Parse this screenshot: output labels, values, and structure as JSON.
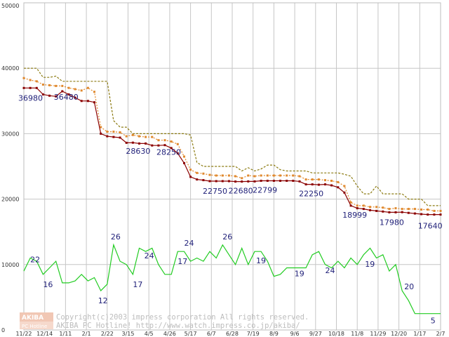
{
  "chart_data": {
    "type": "line",
    "x_ticks": [
      "11/22",
      "12/14",
      "1/11",
      "2/1",
      "2/22",
      "3/15",
      "4/5",
      "4/26",
      "5/17",
      "6/7",
      "6/28",
      "7/19",
      "8/9",
      "9/6",
      "9/27",
      "10/18",
      "11/8",
      "11/29",
      "12/20",
      "1/17",
      "2/7"
    ],
    "ylim": [
      0,
      50000
    ],
    "y_ticks": [
      0,
      10000,
      20000,
      30000,
      40000,
      50000
    ],
    "grid": true,
    "series": [
      {
        "color": "#8b7a10",
        "style": "dashed",
        "values": [
          40000,
          40000,
          40000,
          38600,
          38600,
          38800,
          38000,
          38000,
          38000,
          38000,
          38000,
          38000,
          38000,
          38000,
          32000,
          31000,
          31000,
          30000,
          30000,
          30000,
          30000,
          30000,
          30000,
          30000,
          30000,
          30000,
          29800,
          25600,
          25000,
          25000,
          25000,
          25000,
          25000,
          25000,
          24300,
          24800,
          24300,
          24600,
          25200,
          25200,
          24500,
          24300,
          24300,
          24300,
          24300,
          24000,
          24000,
          24000,
          24000,
          24000,
          23800,
          23500,
          22000,
          20800,
          20800,
          22000,
          20800,
          20800,
          20800,
          20800,
          20000,
          20000,
          20000,
          19000,
          19000,
          19000
        ]
      },
      {
        "color": "#e0892e",
        "style": "dotted-markers",
        "values": [
          38500,
          38200,
          38000,
          37500,
          37400,
          37300,
          37300,
          37000,
          36800,
          36600,
          37000,
          36400,
          31000,
          30300,
          30300,
          30200,
          29600,
          29800,
          29600,
          29500,
          29500,
          29000,
          29000,
          28800,
          28400,
          26500,
          24500,
          24000,
          23900,
          23700,
          23600,
          23600,
          23600,
          23500,
          23200,
          23600,
          23500,
          23600,
          23600,
          23600,
          23600,
          23600,
          23600,
          23500,
          23000,
          23000,
          23000,
          22900,
          22800,
          22600,
          22000,
          19500,
          19000,
          19000,
          18800,
          18800,
          18700,
          18500,
          18600,
          18500,
          18500,
          18500,
          18400,
          18400,
          18200,
          18200
        ]
      },
      {
        "color": "#8b0000",
        "style": "solid-markers",
        "values": [
          36980,
          36980,
          36980,
          36000,
          35800,
          35700,
          36480,
          36000,
          35500,
          35000,
          35000,
          34800,
          30000,
          29600,
          29500,
          29400,
          28600,
          28630,
          28500,
          28500,
          28200,
          28200,
          28250,
          27800,
          27000,
          25500,
          23400,
          23000,
          22900,
          22750,
          22750,
          22750,
          22750,
          22680,
          22680,
          22700,
          22700,
          22799,
          22799,
          22799,
          22799,
          22799,
          22799,
          22700,
          22250,
          22250,
          22200,
          22250,
          22100,
          21800,
          21000,
          18999,
          18600,
          18500,
          18300,
          18200,
          18100,
          17980,
          17980,
          18000,
          17900,
          17800,
          17700,
          17640,
          17640,
          17640
        ]
      },
      {
        "color": "#22cc22",
        "style": "solid",
        "values": [
          9000,
          11000,
          10500,
          8500,
          9500,
          10500,
          7200,
          7200,
          7500,
          8500,
          7500,
          8000,
          6000,
          7000,
          13000,
          10500,
          10000,
          8500,
          12500,
          12000,
          12500,
          10000,
          8500,
          8500,
          12000,
          12000,
          10500,
          11000,
          10500,
          12000,
          11000,
          13000,
          11500,
          10000,
          12500,
          10000,
          12000,
          12000,
          10500,
          8200,
          8500,
          9500,
          9500,
          9500,
          9500,
          11500,
          12000,
          10000,
          9500,
          10500,
          9500,
          11000,
          10000,
          11500,
          12500,
          11000,
          11500,
          9000,
          10000,
          6000,
          4500,
          2500,
          2500,
          2500,
          2500,
          2500
        ]
      }
    ],
    "annotations": [
      "36980",
      "36480",
      "28630",
      "28250",
      "22750",
      "22680",
      "22799",
      "22250",
      "18999",
      "17980",
      "17640",
      "22",
      "16",
      "12",
      "26",
      "17",
      "24",
      "17",
      "24",
      "26",
      "19",
      "19",
      "24",
      "19",
      "20",
      "5"
    ],
    "credit": {
      "logo": "AKIBA PC Hotline!",
      "line1": "Copyright(c)2003 impress corporation All rights reserved.",
      "line2": "AKIBA PC Hotline!  http://www.watch.impress.co.jp/akiba/"
    }
  }
}
